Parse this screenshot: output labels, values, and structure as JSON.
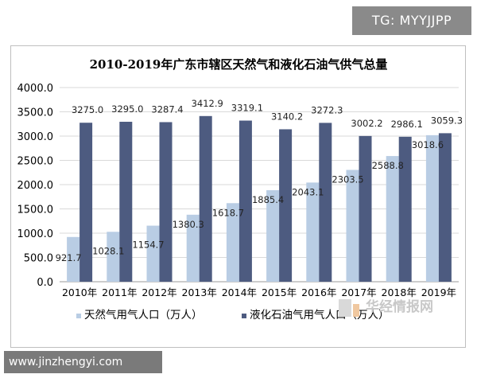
{
  "overlay": {
    "top_right_tag": "TG: MYYJJPP",
    "bottom_left_tag": "www.jinzhengyi.com",
    "watermark": "华经情报网"
  },
  "chart_data": {
    "type": "bar",
    "title": "2010-2019年广东市辖区天然气和液化石油气供气总量",
    "categories": [
      "2010年",
      "2011年",
      "2012年",
      "2013年",
      "2014年",
      "2015年",
      "2016年",
      "2017年",
      "2018年",
      "2019年"
    ],
    "series": [
      {
        "name": "天然气用气人口（万人）",
        "color": "#b9cde4",
        "values": [
          921.7,
          1028.1,
          1154.7,
          1380.3,
          1618.7,
          1885.4,
          2043.1,
          2303.5,
          2588.8,
          3018.6
        ],
        "labels": [
          "921.7",
          "1028.1",
          "1154.7",
          "1380.3",
          "1618.7",
          "1885.4",
          "2043.1",
          "2303.5",
          "2588.8",
          "3018.6"
        ]
      },
      {
        "name": "液化石油气用气人口（万人）",
        "color": "#4d5b80",
        "values": [
          3275.0,
          3295.0,
          3287.4,
          3412.9,
          3319.1,
          3140.2,
          3272.3,
          3002.2,
          2986.1,
          3059.3
        ],
        "labels": [
          "3275.0",
          "3295.0",
          "3287.4",
          "3412.9",
          "3319.1",
          "3140.2",
          "3272.3",
          "3002.2",
          "2986.1",
          "3059.3"
        ]
      }
    ],
    "ylim": [
      0,
      4000
    ],
    "yticks": [
      "0.0",
      "500.0",
      "1000.0",
      "1500.0",
      "2000.0",
      "2500.0",
      "3000.0",
      "3500.0",
      "4000.0"
    ],
    "grid": true,
    "legend": "bottom"
  }
}
